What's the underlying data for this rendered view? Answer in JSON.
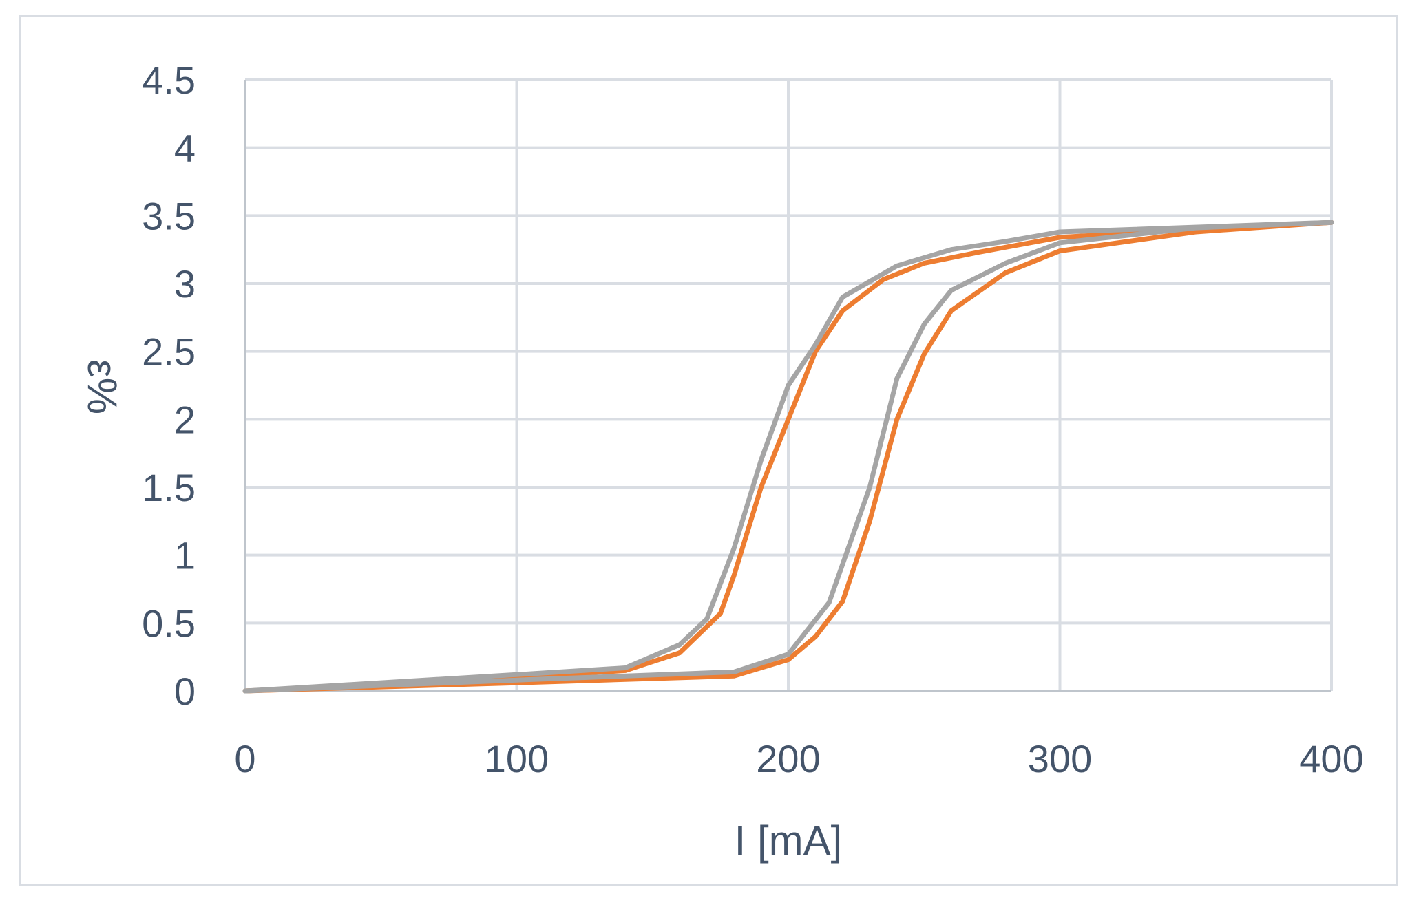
{
  "chart_data": {
    "type": "line",
    "xlabel": "I [mA]",
    "ylabel": "ε%",
    "xlim": [
      0,
      400
    ],
    "ylim": [
      0,
      4.5
    ],
    "xticks": [
      0,
      100,
      200,
      300,
      400
    ],
    "yticks": [
      0,
      0.5,
      1,
      1.5,
      2,
      2.5,
      3,
      3.5,
      4,
      4.5
    ],
    "ytick_labels": [
      "0",
      "0.5",
      "1",
      "1.5",
      "2",
      "2.5",
      "3",
      "3.5",
      "4",
      "4.5"
    ],
    "grid": true,
    "colors": {
      "orange": "#ed7d31",
      "gray": "#a5a5a5",
      "grid": "#d9dde3",
      "axis": "#bfc5cc",
      "text": "#44546a"
    },
    "series": [
      {
        "color": "#ed7d31",
        "points": [
          [
            0,
            0
          ],
          [
            100,
            0.06
          ],
          [
            180,
            0.11
          ],
          [
            200,
            0.23
          ],
          [
            210,
            0.4
          ],
          [
            220,
            0.66
          ],
          [
            230,
            1.25
          ],
          [
            240,
            2.0
          ],
          [
            250,
            2.48
          ],
          [
            260,
            2.8
          ],
          [
            280,
            3.08
          ],
          [
            300,
            3.24
          ],
          [
            350,
            3.38
          ],
          [
            400,
            3.45
          ]
        ]
      },
      {
        "color": "#ed7d31",
        "points": [
          [
            0,
            0
          ],
          [
            100,
            0.1
          ],
          [
            140,
            0.15
          ],
          [
            160,
            0.28
          ],
          [
            175,
            0.57
          ],
          [
            180,
            0.85
          ],
          [
            190,
            1.5
          ],
          [
            200,
            2.0
          ],
          [
            210,
            2.5
          ],
          [
            220,
            2.8
          ],
          [
            235,
            3.03
          ],
          [
            250,
            3.15
          ],
          [
            270,
            3.23
          ],
          [
            300,
            3.34
          ],
          [
            350,
            3.4
          ],
          [
            400,
            3.45
          ]
        ]
      },
      {
        "color": "#a5a5a5",
        "points": [
          [
            0,
            0
          ],
          [
            100,
            0.08
          ],
          [
            180,
            0.14
          ],
          [
            200,
            0.27
          ],
          [
            215,
            0.65
          ],
          [
            230,
            1.5
          ],
          [
            240,
            2.3
          ],
          [
            250,
            2.7
          ],
          [
            260,
            2.95
          ],
          [
            280,
            3.15
          ],
          [
            300,
            3.3
          ],
          [
            350,
            3.41
          ],
          [
            400,
            3.45
          ]
        ]
      },
      {
        "color": "#a5a5a5",
        "points": [
          [
            0,
            0
          ],
          [
            100,
            0.12
          ],
          [
            140,
            0.17
          ],
          [
            160,
            0.34
          ],
          [
            170,
            0.53
          ],
          [
            180,
            1.05
          ],
          [
            190,
            1.7
          ],
          [
            200,
            2.25
          ],
          [
            210,
            2.55
          ],
          [
            220,
            2.9
          ],
          [
            240,
            3.13
          ],
          [
            260,
            3.25
          ],
          [
            280,
            3.31
          ],
          [
            300,
            3.38
          ],
          [
            400,
            3.45
          ]
        ]
      }
    ]
  }
}
